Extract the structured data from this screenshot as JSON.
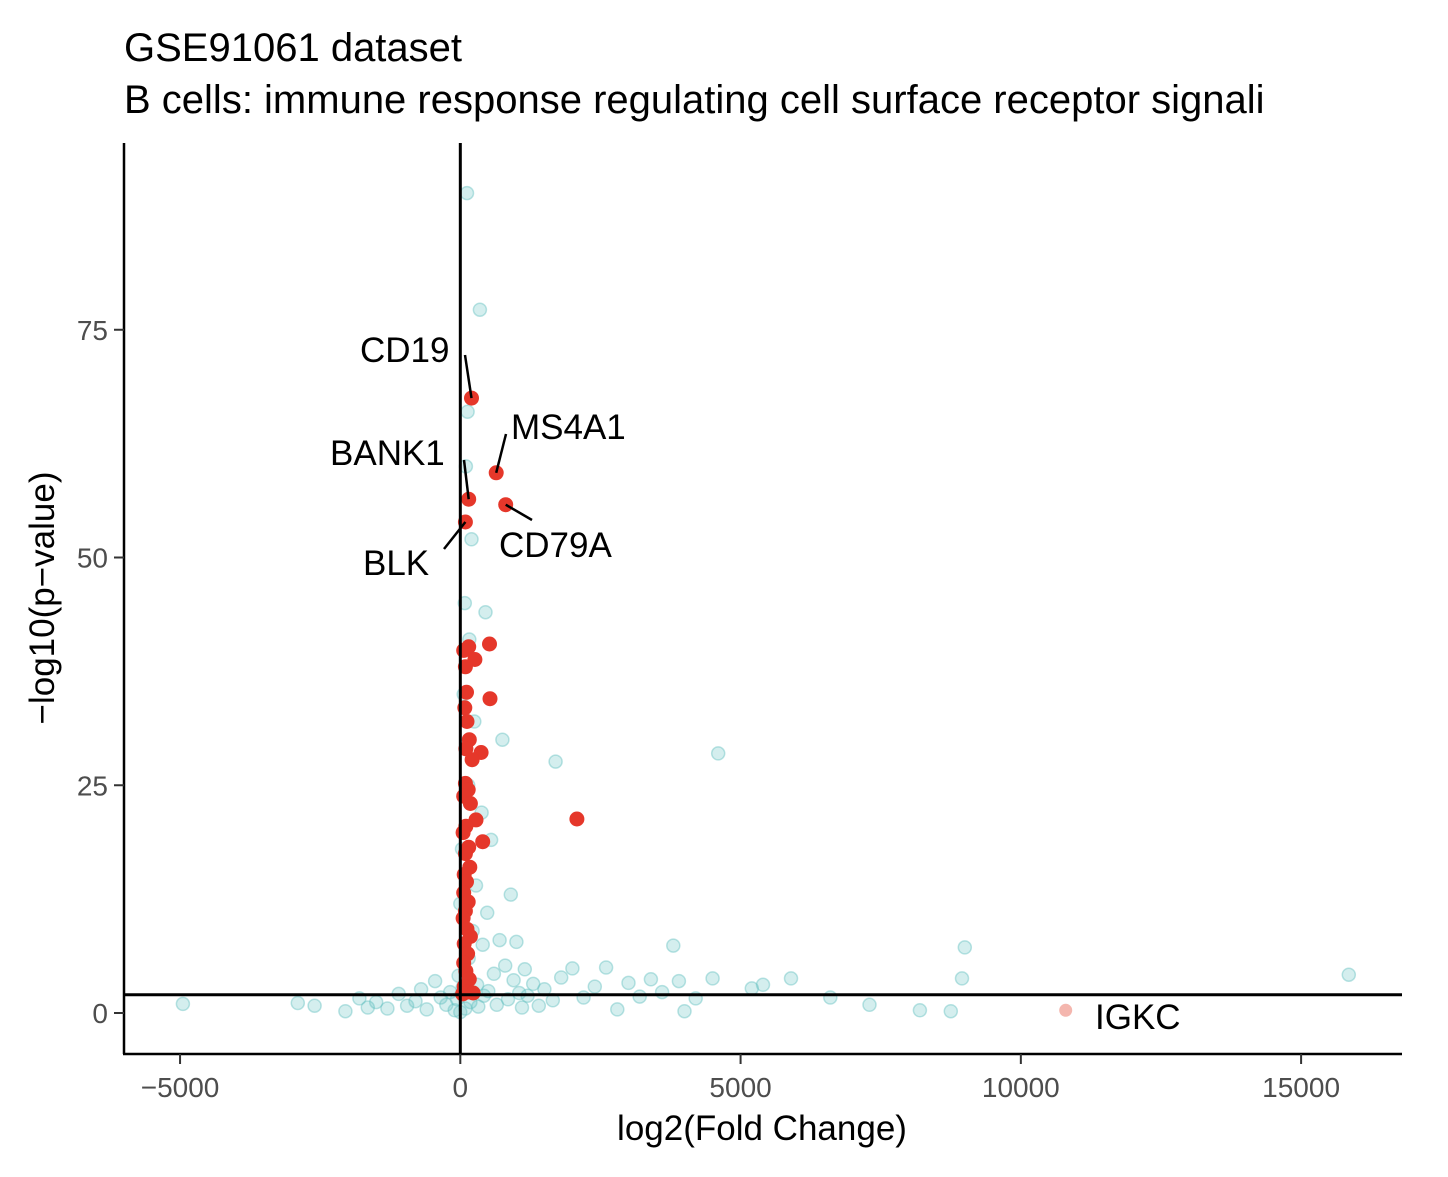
{
  "chart_data": {
    "type": "scatter",
    "title": "GSE91061 dataset",
    "subtitle": "B cells: immune response regulating cell surface receptor signali",
    "xlabel": "log2(Fold Change)",
    "ylabel": "−log10(p−value)",
    "xlim": [
      -6000,
      16800
    ],
    "ylim": [
      -4.5,
      95.5
    ],
    "xticks": [
      -5000,
      0,
      5000,
      10000,
      15000
    ],
    "xtick_labels": [
      "−5000",
      "0",
      "5000",
      "10000",
      "15000"
    ],
    "yticks": [
      0,
      25,
      50,
      75
    ],
    "ytick_labels": [
      "0",
      "25",
      "50",
      "75"
    ],
    "grid": false,
    "legend": "none",
    "reference_lines": {
      "vertical_x": 0,
      "horizontal_y": 2
    },
    "colors": {
      "background_genes": "#66c2c2",
      "highlight_genes": "#e5372a",
      "faded_highlight": "#f4b6ae",
      "axis": "#000000"
    },
    "series": [
      {
        "points": [
          [
            -4950,
            1
          ],
          [
            -2900,
            1.1
          ],
          [
            -2600,
            0.8
          ],
          [
            -2050,
            0.2
          ],
          [
            -1800,
            1.6
          ],
          [
            -1650,
            0.6
          ],
          [
            -1500,
            1.2
          ],
          [
            -1300,
            0.5
          ],
          [
            -1100,
            2.1
          ],
          [
            -950,
            0.8
          ],
          [
            -800,
            1.3
          ],
          [
            -700,
            2.6
          ],
          [
            -600,
            0.4
          ],
          [
            -450,
            3.5
          ],
          [
            -350,
            1.7
          ],
          [
            -250,
            0.9
          ],
          [
            -180,
            2.3
          ],
          [
            -100,
            0.3
          ],
          [
            -60,
            1.5
          ],
          [
            -30,
            4.1
          ],
          [
            0,
            0.1
          ],
          [
            0,
            12
          ],
          [
            30,
            18
          ],
          [
            40,
            2.8
          ],
          [
            60,
            35
          ],
          [
            80,
            45
          ],
          [
            90,
            0.5
          ],
          [
            100,
            60
          ],
          [
            120,
            90
          ],
          [
            130,
            66
          ],
          [
            140,
            25
          ],
          [
            150,
            6
          ],
          [
            160,
            41
          ],
          [
            180,
            1.2
          ],
          [
            200,
            52
          ],
          [
            220,
            9
          ],
          [
            250,
            32
          ],
          [
            280,
            14
          ],
          [
            300,
            3.1
          ],
          [
            320,
            0.7
          ],
          [
            350,
            77.2
          ],
          [
            380,
            22
          ],
          [
            400,
            7.5
          ],
          [
            420,
            1.9
          ],
          [
            450,
            44
          ],
          [
            480,
            11
          ],
          [
            500,
            2.4
          ],
          [
            550,
            19
          ],
          [
            600,
            4.3
          ],
          [
            650,
            0.9
          ],
          [
            700,
            8
          ],
          [
            750,
            30
          ],
          [
            800,
            5.2
          ],
          [
            850,
            1.5
          ],
          [
            900,
            13
          ],
          [
            950,
            3.6
          ],
          [
            1000,
            7.8
          ],
          [
            1050,
            2.2
          ],
          [
            1100,
            0.6
          ],
          [
            1150,
            4.8
          ],
          [
            1200,
            1.9
          ],
          [
            1300,
            3.2
          ],
          [
            1400,
            0.8
          ],
          [
            1500,
            2.6
          ],
          [
            1650,
            1.4
          ],
          [
            1700,
            27.6
          ],
          [
            1800,
            3.9
          ],
          [
            2000,
            4.9
          ],
          [
            2200,
            1.7
          ],
          [
            2400,
            2.9
          ],
          [
            2600,
            5
          ],
          [
            2800,
            0.4
          ],
          [
            3000,
            3.3
          ],
          [
            3200,
            1.8
          ],
          [
            3400,
            3.7
          ],
          [
            3600,
            2.3
          ],
          [
            3800,
            7.4
          ],
          [
            3900,
            3.5
          ],
          [
            4000,
            0.2
          ],
          [
            4200,
            1.6
          ],
          [
            4500,
            3.8
          ],
          [
            4600,
            28.5
          ],
          [
            5200,
            2.7
          ],
          [
            5400,
            3.1
          ],
          [
            5900,
            3.8
          ],
          [
            6600,
            1.7
          ],
          [
            7300,
            0.9
          ],
          [
            8200,
            0.3
          ],
          [
            8750,
            0.2
          ],
          [
            8950,
            3.8
          ],
          [
            9000,
            7.2
          ],
          [
            15850,
            4.2
          ]
        ]
      },
      {
        "points": [
          [
            200,
            67.5
          ],
          [
            640,
            59.3
          ],
          [
            150,
            56.4
          ],
          [
            810,
            55.8
          ],
          [
            90,
            53.9
          ],
          [
            520,
            40.5
          ],
          [
            150,
            40.2
          ],
          [
            60,
            39.8
          ],
          [
            260,
            38.8
          ],
          [
            90,
            38
          ],
          [
            530,
            34.5
          ],
          [
            110,
            35.2
          ],
          [
            80,
            33.5
          ],
          [
            120,
            32
          ],
          [
            160,
            30
          ],
          [
            100,
            29
          ],
          [
            370,
            28.6
          ],
          [
            210,
            27.8
          ],
          [
            90,
            25.2
          ],
          [
            140,
            24.5
          ],
          [
            60,
            23.8
          ],
          [
            180,
            23
          ],
          [
            2080,
            21.3
          ],
          [
            280,
            21.2
          ],
          [
            100,
            20.5
          ],
          [
            50,
            19.8
          ],
          [
            400,
            18.8
          ],
          [
            150,
            18.2
          ],
          [
            90,
            17.5
          ],
          [
            170,
            16
          ],
          [
            70,
            15.2
          ],
          [
            110,
            14.4
          ],
          [
            60,
            13.2
          ],
          [
            140,
            12.2
          ],
          [
            90,
            11.2
          ],
          [
            50,
            10.4
          ],
          [
            120,
            9.2
          ],
          [
            180,
            8.4
          ],
          [
            70,
            7.6
          ],
          [
            130,
            6.5
          ],
          [
            60,
            5.5
          ],
          [
            100,
            4.6
          ],
          [
            160,
            3.7
          ],
          [
            70,
            2.9
          ],
          [
            120,
            2.3
          ],
          [
            40,
            2.1
          ],
          [
            230,
            2.2
          ]
        ]
      },
      {
        "points": [
          [
            10800,
            0.3
          ]
        ]
      }
    ],
    "annotations": [
      {
        "text": "CD19",
        "x": 200,
        "y": 67.5
      },
      {
        "text": "MS4A1",
        "x": 640,
        "y": 59.3
      },
      {
        "text": "BANK1",
        "x": 150,
        "y": 56.4
      },
      {
        "text": "CD79A",
        "x": 810,
        "y": 55.8
      },
      {
        "text": "BLK",
        "x": 90,
        "y": 53.9
      },
      {
        "text": "IGKC",
        "x": 10800,
        "y": 0.3
      }
    ]
  }
}
